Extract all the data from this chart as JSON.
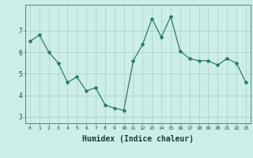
{
  "x": [
    0,
    1,
    2,
    3,
    4,
    5,
    6,
    7,
    8,
    9,
    10,
    11,
    12,
    13,
    14,
    15,
    16,
    17,
    18,
    19,
    20,
    21,
    22,
    23
  ],
  "y": [
    6.5,
    6.8,
    6.0,
    5.5,
    4.6,
    4.85,
    4.2,
    4.35,
    3.55,
    3.4,
    3.3,
    5.6,
    6.35,
    7.55,
    6.7,
    7.65,
    6.05,
    5.7,
    5.6,
    5.6,
    5.4,
    5.7,
    5.5,
    4.6
  ],
  "line_color": "#2a7a6a",
  "marker": "*",
  "marker_size": 3,
  "bg_color": "#cceee8",
  "grid_color": "#aacccc",
  "xlabel": "Humidex (Indice chaleur)",
  "xlabel_fontsize": 7,
  "yticks": [
    3,
    4,
    5,
    6,
    7
  ],
  "xlim": [
    -0.5,
    23.5
  ],
  "ylim": [
    2.7,
    8.2
  ]
}
